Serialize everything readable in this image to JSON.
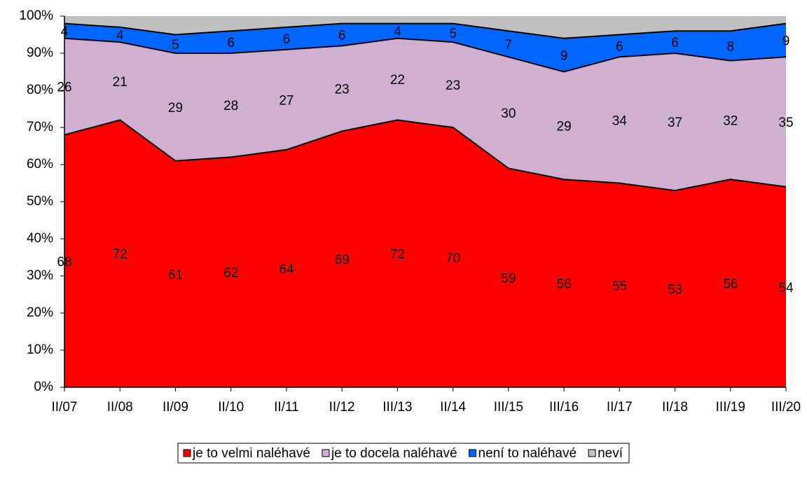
{
  "chart_data": {
    "type": "stacked-area",
    "categories": [
      "II/07",
      "II/08",
      "II/09",
      "II/10",
      "II/11",
      "II/12",
      "III/13",
      "II/14",
      "III/15",
      "III/16",
      "II/17",
      "II/18",
      "III/19",
      "III/20"
    ],
    "series": [
      {
        "name": "je to velmi naléhavé",
        "color": "#ff0000",
        "show_labels": true,
        "values": [
          68,
          72,
          61,
          62,
          64,
          69,
          72,
          70,
          59,
          56,
          55,
          53,
          56,
          54
        ]
      },
      {
        "name": "je to docela naléhavé",
        "color": "#d0b0d0",
        "show_labels": true,
        "values": [
          26,
          21,
          29,
          28,
          27,
          23,
          22,
          23,
          30,
          29,
          34,
          37,
          32,
          35
        ]
      },
      {
        "name": "není to naléhavé",
        "color": "#0066ff",
        "show_labels": true,
        "values": [
          4,
          4,
          5,
          6,
          6,
          6,
          4,
          5,
          7,
          9,
          6,
          6,
          8,
          9
        ]
      },
      {
        "name": "neví",
        "color": "#c0c0c0",
        "show_labels": false,
        "values": [
          2,
          3,
          5,
          4,
          3,
          2,
          2,
          2,
          4,
          6,
          5,
          4,
          4,
          2
        ]
      }
    ],
    "ylim": [
      0,
      100
    ],
    "yticks": [
      {
        "value": 0,
        "label": "0%"
      },
      {
        "value": 10,
        "label": "10%"
      },
      {
        "value": 20,
        "label": "20%"
      },
      {
        "value": 30,
        "label": "30%"
      },
      {
        "value": 40,
        "label": "40%"
      },
      {
        "value": 50,
        "label": "50%"
      },
      {
        "value": 60,
        "label": "60%"
      },
      {
        "value": 70,
        "label": "70%"
      },
      {
        "value": 80,
        "label": "80%"
      },
      {
        "value": 90,
        "label": "90%"
      },
      {
        "value": 100,
        "label": "100%"
      }
    ],
    "legend": "bottom"
  }
}
